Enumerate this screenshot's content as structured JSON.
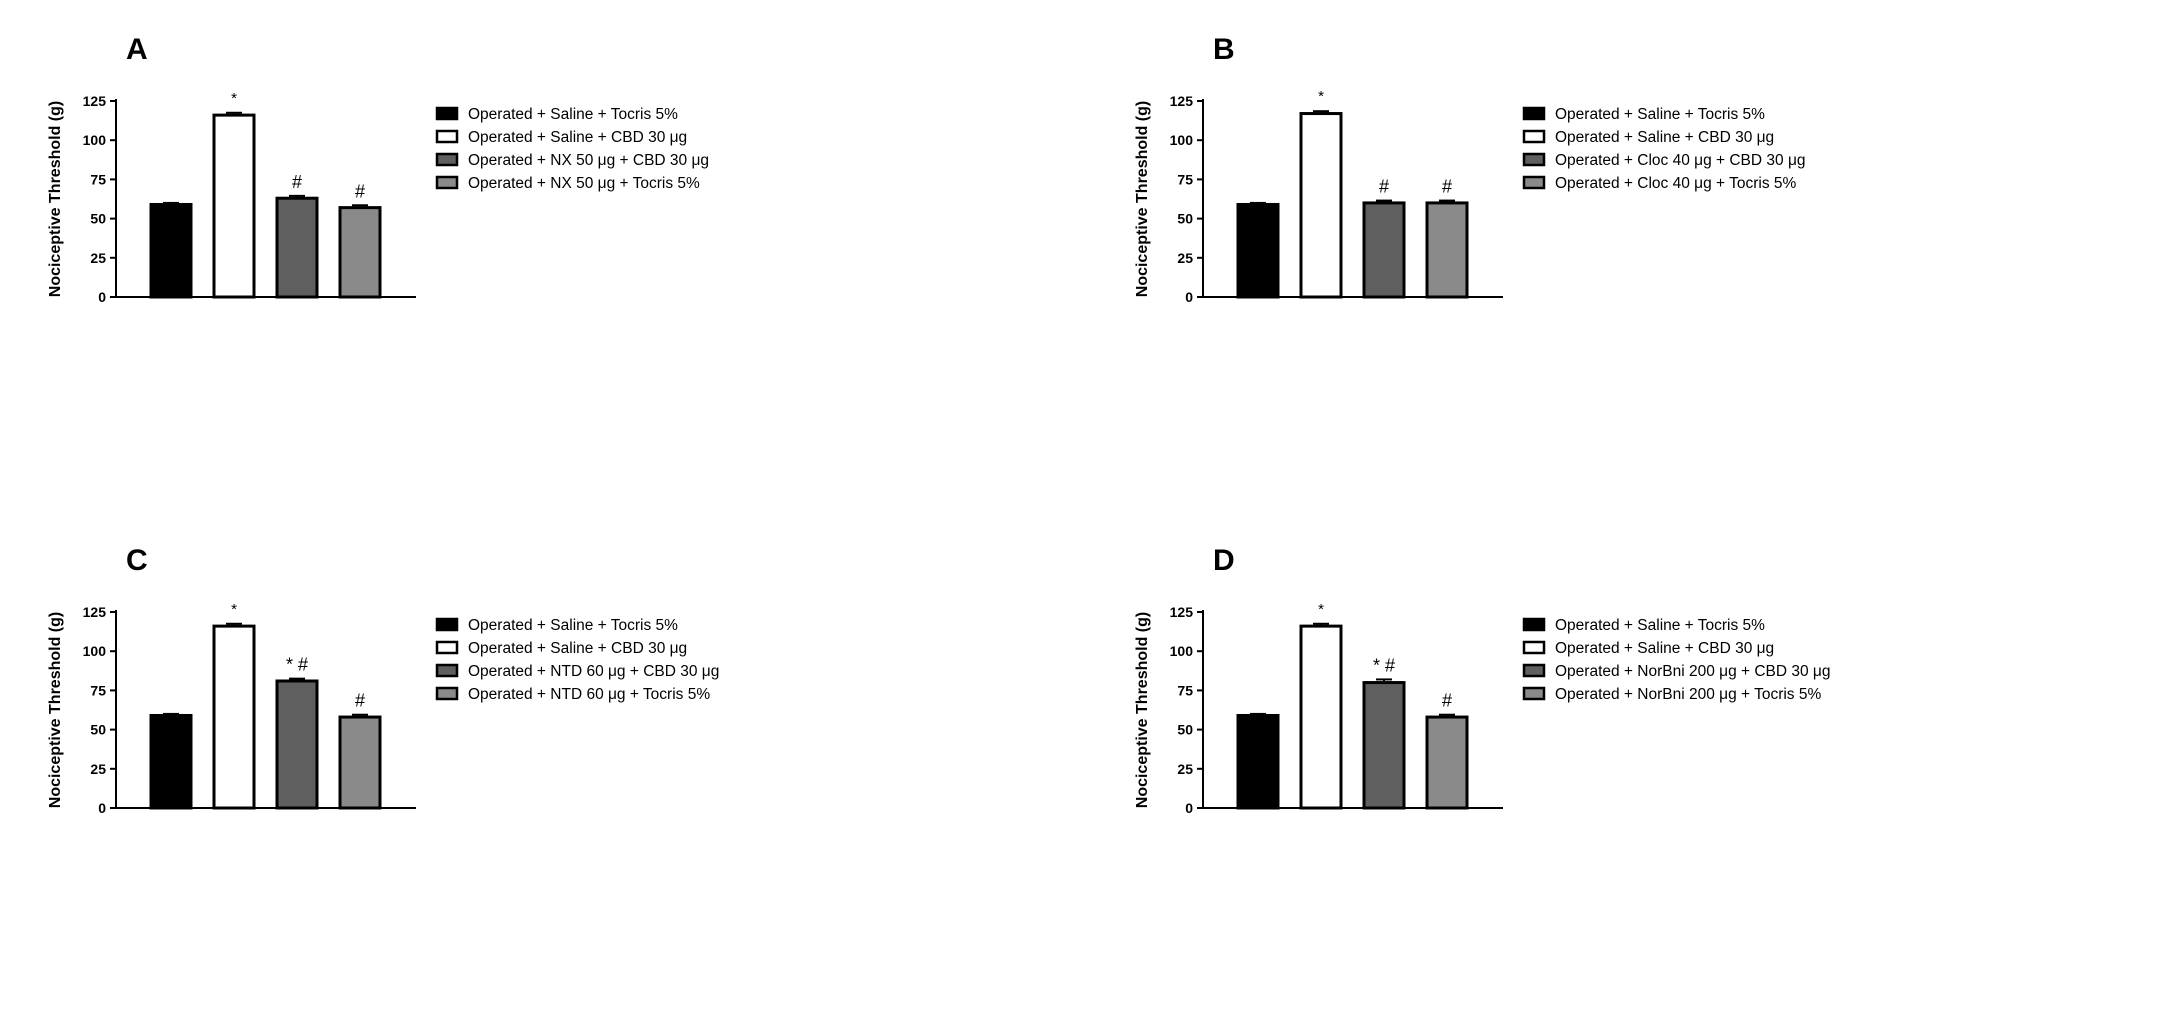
{
  "colors": {
    "bar_fills": [
      "#000000",
      "#ffffff",
      "#5f5f5f",
      "#8a8a8a"
    ],
    "stroke": "#000000"
  },
  "chart_data": [
    {
      "type": "bar",
      "panel_label": "A",
      "ylabel": "Nociceptive Threshold (g)",
      "ylim": [
        0,
        125
      ],
      "yticks": [
        0,
        25,
        50,
        75,
        100,
        125
      ],
      "categories": [
        "Operated + Saline + Tocris 5%",
        "Operated + Saline + CBD 30 μg",
        "Operated + NX 50 μg + CBD 30 μg",
        "Operated + NX 50 μg + Tocris 5%"
      ],
      "values": [
        59,
        116,
        63,
        57
      ],
      "errors": [
        1,
        1.5,
        1.5,
        1.5
      ],
      "annotations": [
        "",
        "*",
        "#",
        "#"
      ],
      "legend": [
        "Operated + Saline + Tocris 5%",
        "Operated + Saline + CBD 30 μg",
        "Operated + NX 50 μg + CBD 30 μg",
        "Operated + NX 50 μg + Tocris 5%"
      ],
      "legend_position": "right",
      "grid": false
    },
    {
      "type": "bar",
      "panel_label": "B",
      "ylabel": "Nociceptive Threshold (g)",
      "ylim": [
        0,
        125
      ],
      "yticks": [
        0,
        25,
        50,
        75,
        100,
        125
      ],
      "categories": [
        "Operated + Saline + Tocris 5%",
        "Operated + Saline + CBD 30 μg",
        "Operated + Cloc 40 μg + CBD 30 μg",
        "Operated + Cloc 40 μg + Tocris 5%"
      ],
      "values": [
        59,
        117,
        60,
        60
      ],
      "errors": [
        1,
        1.5,
        1.5,
        1.5
      ],
      "annotations": [
        "",
        "*",
        "#",
        "#"
      ],
      "legend": [
        "Operated + Saline + Tocris 5%",
        "Operated + Saline + CBD 30 μg",
        "Operated + Cloc 40 μg + CBD 30 μg",
        "Operated + Cloc 40 μg + Tocris 5%"
      ],
      "legend_position": "right",
      "grid": false
    },
    {
      "type": "bar",
      "panel_label": "C",
      "ylabel": "Nociceptive Threshold (g)",
      "ylim": [
        0,
        125
      ],
      "yticks": [
        0,
        25,
        50,
        75,
        100,
        125
      ],
      "categories": [
        "Operated + Saline + Tocris 5%",
        "Operated + Saline + CBD 30 μg",
        "Operated + NTD 60 μg + CBD 30 μg",
        "Operated + NTD 60 μg + Tocris 5%"
      ],
      "values": [
        59,
        116,
        81,
        58
      ],
      "errors": [
        1,
        1.5,
        1.5,
        1.5
      ],
      "annotations": [
        "",
        "*",
        "* #",
        "#"
      ],
      "legend": [
        "Operated + Saline + Tocris 5%",
        "Operated + Saline + CBD 30 μg",
        "Operated + NTD 60 μg + CBD 30 μg",
        "Operated + NTD 60 μg + Tocris 5%"
      ],
      "legend_position": "right",
      "grid": false
    },
    {
      "type": "bar",
      "panel_label": "D",
      "ylabel": "Nociceptive Threshold (g)",
      "ylim": [
        0,
        125
      ],
      "yticks": [
        0,
        25,
        50,
        75,
        100,
        125
      ],
      "categories": [
        "Operated + Saline + Tocris 5%",
        "Operated + Saline + CBD 30 μg",
        "Operated + NorBni 200 μg + CBD 30 μg",
        "Operated + NorBni 200 μg + Tocris 5%"
      ],
      "values": [
        59,
        116,
        80,
        58
      ],
      "errors": [
        1,
        1.5,
        2,
        1.5
      ],
      "annotations": [
        "",
        "*",
        "* #",
        "#"
      ],
      "legend": [
        "Operated + Saline + Tocris 5%",
        "Operated + Saline + CBD 30 μg",
        "Operated + NorBni 200 μg + CBD 30 μg",
        "Operated + NorBni 200 μg + Tocris 5%"
      ],
      "legend_position": "right",
      "grid": false
    }
  ]
}
